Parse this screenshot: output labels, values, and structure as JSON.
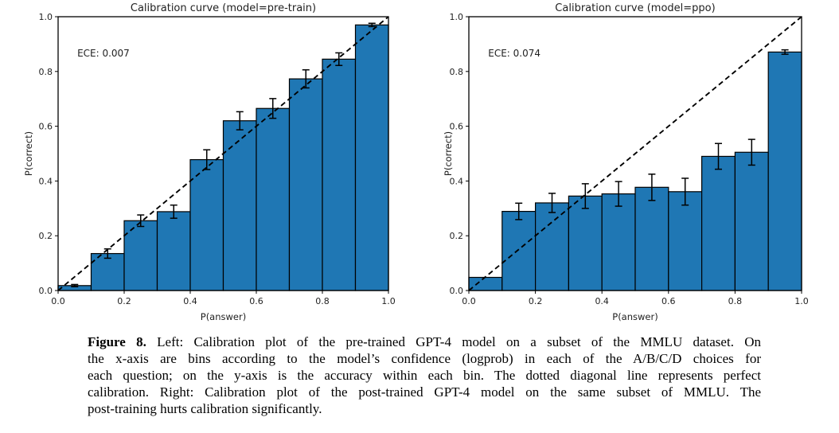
{
  "page": {
    "background": "#ffffff",
    "text_color": "#000000"
  },
  "chart_data": [
    {
      "type": "bar",
      "title": "Calibration curve (model=pre-train)",
      "annotation": "ECE: 0.007",
      "xlabel": "P(answer)",
      "ylabel": "P(correct)",
      "xlim": [
        0.0,
        1.0
      ],
      "ylim": [
        0.0,
        1.0
      ],
      "xticks": [
        "0.0",
        "0.2",
        "0.4",
        "0.6",
        "0.8",
        "1.0"
      ],
      "yticks": [
        "0.0",
        "0.2",
        "0.4",
        "0.6",
        "0.8",
        "1.0"
      ],
      "grid": false,
      "legend": null,
      "bin_width": 0.1,
      "bin_left_edges": [
        0.0,
        0.1,
        0.2,
        0.3,
        0.4,
        0.5,
        0.6,
        0.7,
        0.8,
        0.9
      ],
      "values": [
        0.018,
        0.135,
        0.255,
        0.288,
        0.478,
        0.62,
        0.665,
        0.773,
        0.845,
        0.97
      ],
      "errors": [
        0.004,
        0.017,
        0.021,
        0.024,
        0.036,
        0.033,
        0.036,
        0.033,
        0.023,
        0.006
      ],
      "diagonal_line": true,
      "bar_color": "#1f77b4",
      "edge_color": "#000000",
      "line_color": "#000000"
    },
    {
      "type": "bar",
      "title": "Calibration curve (model=ppo)",
      "annotation": "ECE: 0.074",
      "xlabel": "P(answer)",
      "ylabel": "P(correct)",
      "xlim": [
        0.0,
        1.0
      ],
      "ylim": [
        0.0,
        1.0
      ],
      "xticks": [
        "0.0",
        "0.2",
        "0.4",
        "0.6",
        "0.8",
        "1.0"
      ],
      "yticks": [
        "0.0",
        "0.2",
        "0.4",
        "0.6",
        "0.8",
        "1.0"
      ],
      "grid": false,
      "legend": null,
      "bin_width": 0.1,
      "bin_left_edges": [
        0.0,
        0.1,
        0.2,
        0.3,
        0.4,
        0.5,
        0.6,
        0.7,
        0.8,
        0.9
      ],
      "values": [
        0.048,
        0.289,
        0.32,
        0.345,
        0.353,
        0.377,
        0.361,
        0.49,
        0.505,
        0.871
      ],
      "errors": [
        0.0,
        0.03,
        0.035,
        0.045,
        0.045,
        0.048,
        0.049,
        0.047,
        0.047,
        0.008
      ],
      "diagonal_line": true,
      "bar_color": "#1f77b4",
      "edge_color": "#000000",
      "line_color": "#000000"
    }
  ],
  "caption": {
    "label": "Figure 8.",
    "lines": [
      " Left: Calibration plot of the pre-trained GPT-4 model on a subset of the MMLU dataset. On",
      "the x-axis are bins according to the model’s confidence (logprob) in each of the A/B/C/D choices for",
      "each question; on the y-axis is the accuracy within each bin. The dotted diagonal line represents perfect",
      "calibration. Right: Calibration plot of the post-trained GPT-4 model on the same subset of MMLU. The",
      "post-training hurts calibration significantly."
    ]
  }
}
